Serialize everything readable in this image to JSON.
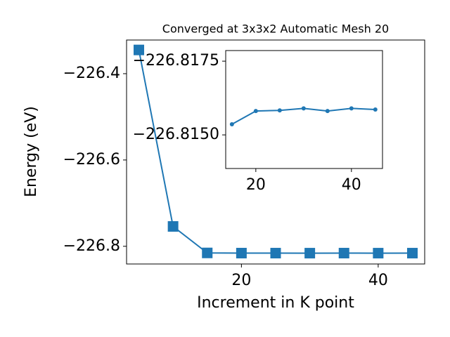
{
  "chart_data": [
    {
      "type": "line",
      "title": "Converged at 3x3x2 Automatic Mesh 20",
      "xlabel": "Increment in K point",
      "ylabel": "Energy (eV)",
      "marker": "square",
      "color": "#1f77b4",
      "x": [
        5,
        10,
        15,
        20,
        25,
        30,
        35,
        40,
        45
      ],
      "values": [
        -226.345,
        -226.754,
        -226.81536,
        -226.81581,
        -226.81583,
        -226.8159,
        -226.81581,
        -226.8159,
        -226.81586
      ],
      "xlim": [
        3.2,
        46.8
      ],
      "xticks": [
        20,
        40
      ],
      "ylim": [
        -226.841,
        -226.322
      ],
      "yticks": [
        {
          "value": -226.8,
          "label": "−226.8"
        },
        {
          "value": -226.6,
          "label": "−226.6"
        },
        {
          "value": -226.4,
          "label": "−226.4"
        }
      ]
    },
    {
      "type": "line",
      "marker": "circle",
      "color": "#1f77b4",
      "x": [
        15,
        20,
        25,
        30,
        35,
        40,
        45
      ],
      "values": [
        -226.81536,
        -226.81581,
        -226.81583,
        -226.8159,
        -226.81581,
        -226.8159,
        -226.81586
      ],
      "xlim": [
        13.7,
        46.5
      ],
      "xticks": [
        20,
        40
      ],
      "ylim": [
        -226.81386,
        -226.81786
      ],
      "yticks": [
        {
          "value": -226.815,
          "label": "−226.8150"
        },
        {
          "value": -226.8175,
          "label": "−226.8175"
        }
      ]
    }
  ]
}
